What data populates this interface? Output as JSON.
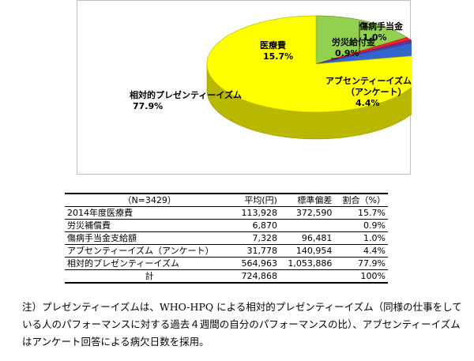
{
  "chart_data": {
    "type": "pie",
    "series": [
      {
        "label_lines": [
          "医療費",
          "15.7%"
        ],
        "value": 15.7,
        "color": "#92d050"
      },
      {
        "label_lines": [
          "傷病手当金",
          "1.0%"
        ],
        "value": 1.0,
        "color": "#ff2020"
      },
      {
        "label_lines": [
          "労災給付金",
          "0.9%"
        ],
        "value": 0.9,
        "color": "#7030a0"
      },
      {
        "label_lines": [
          "アブセンティーイズム",
          "（アンケート）",
          "4.4%"
        ],
        "value": 4.4,
        "color": "#3366cc"
      },
      {
        "label_lines": [
          "相対的プレゼンティーイズム",
          "77.9%"
        ],
        "value": 77.9,
        "color": "#ffff00"
      }
    ]
  },
  "table": {
    "headers": [
      "（N=3429）",
      "平均(円)",
      "標準偏差",
      "割合（%）"
    ],
    "rows": [
      [
        "2014年度医療費",
        "113,928",
        "372,590",
        "15.7%"
      ],
      [
        "労災補償費",
        "6,870",
        "",
        "0.9%"
      ],
      [
        "傷病手当金支給額",
        "7,328",
        "96,481",
        "1.0%"
      ],
      [
        "アブセンティーイズム（アンケート）",
        "31,778",
        "140,954",
        "4.4%"
      ],
      [
        "相対的プレゼンティーイズム",
        "564,963",
        "1,053,886",
        "77.9%"
      ],
      [
        "計",
        "724,868",
        "",
        "100%"
      ]
    ]
  },
  "note": "注）プレゼンティーイズムは、WHO-HPQ による相対的プレゼンティーイズム（同様の仕事をしている人のパフォーマンスに対する過去４週間の自分のパフォーマンスの比）、アブセンティーイズムはアンケート回答による病欠日数を採用。"
}
